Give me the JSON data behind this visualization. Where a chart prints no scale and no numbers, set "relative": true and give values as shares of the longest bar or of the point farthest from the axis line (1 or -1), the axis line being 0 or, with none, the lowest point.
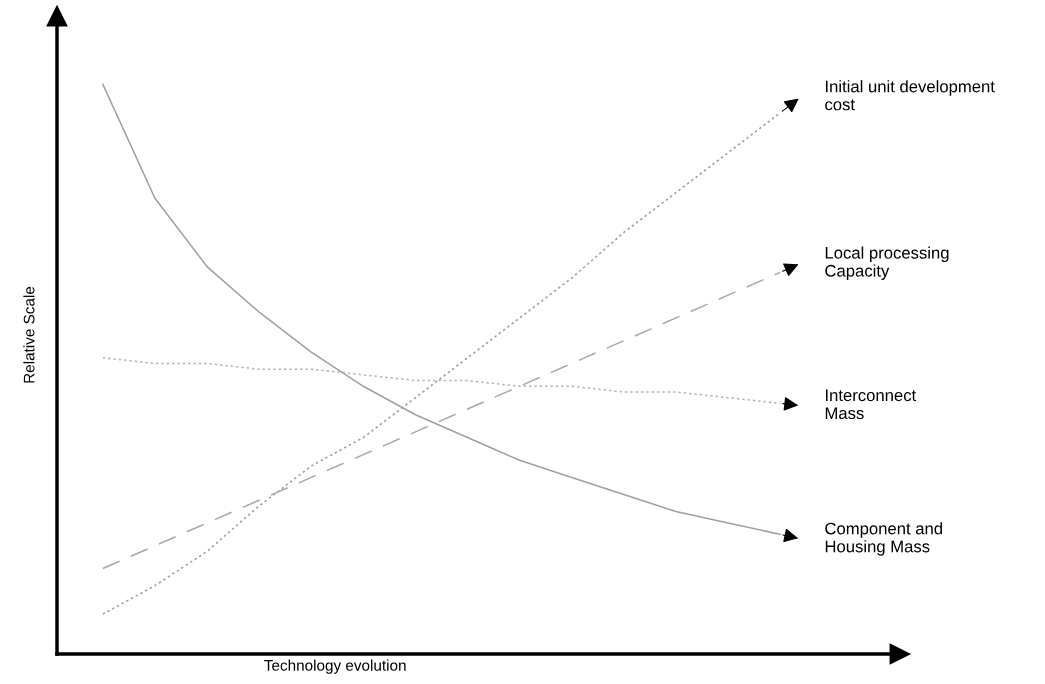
{
  "chart_data": {
    "type": "line",
    "relative": true,
    "xlabel": "Technology evolution",
    "ylabel": "Relative Scale",
    "legend": false,
    "marker": "none",
    "categories": [
      null,
      null,
      null,
      null,
      null,
      null,
      null,
      null,
      null,
      null,
      null,
      null,
      null,
      null
    ],
    "series": [
      {
        "name": "Initial unit development\ncost",
        "color": "#9a9a9a",
        "line_style": "dotted",
        "values": [
          0.07,
          0.12,
          0.18,
          0.26,
          0.33,
          0.38,
          0.45,
          0.52,
          0.59,
          0.66,
          0.74,
          0.81,
          0.88,
          0.95
        ]
      },
      {
        "name": "Local processing\nCapacity",
        "color": "#a8a8a8",
        "line_style": "dashed",
        "values": [
          0.15,
          0.19,
          0.23,
          0.27,
          0.31,
          0.35,
          0.39,
          0.43,
          0.47,
          0.51,
          0.55,
          0.59,
          0.63,
          0.67
        ]
      },
      {
        "name": "Interconnect\nMass",
        "color": "#b0b0b0",
        "line_style": "dotted",
        "values": [
          0.52,
          0.51,
          0.51,
          0.5,
          0.5,
          0.49,
          0.48,
          0.48,
          0.47,
          0.47,
          0.46,
          0.46,
          0.45,
          0.44
        ]
      },
      {
        "name": "Component and\nHousing Mass",
        "color": "#a0a0a0",
        "line_style": "solid",
        "values": [
          1.0,
          0.8,
          0.68,
          0.6,
          0.53,
          0.47,
          0.42,
          0.38,
          0.34,
          0.31,
          0.28,
          0.25,
          0.23,
          0.21
        ]
      }
    ]
  }
}
